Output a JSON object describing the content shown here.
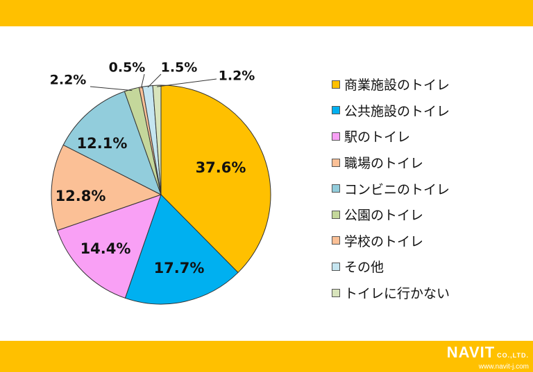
{
  "chart_data": {
    "type": "pie",
    "start_angle_deg": 0,
    "direction": "clockwise",
    "slices": [
      {
        "label": "商業施設のトイレ",
        "value": 37.6,
        "value_label": "37.6%",
        "color": "#FFC000"
      },
      {
        "label": "公共施設のトイレ",
        "value": 17.7,
        "value_label": "17.7%",
        "color": "#00B0F0"
      },
      {
        "label": "駅のトイレ",
        "value": 14.4,
        "value_label": "14.4%",
        "color": "#F9A0F5"
      },
      {
        "label": "職場のトイレ",
        "value": 12.8,
        "value_label": "12.8%",
        "color": "#FBC096"
      },
      {
        "label": "コンビニのトイレ",
        "value": 12.1,
        "value_label": "12.1%",
        "color": "#92CDDC"
      },
      {
        "label": "公園のトイレ",
        "value": 2.2,
        "value_label": "2.2%",
        "color": "#C4D79B"
      },
      {
        "label": "学校のトイレ",
        "value": 0.5,
        "value_label": "0.5%",
        "color": "#FBC096"
      },
      {
        "label": "その他",
        "value": 1.5,
        "value_label": "1.5%",
        "color": "#C5E5F0"
      },
      {
        "label": "トイレに行かない",
        "value": 1.2,
        "value_label": "1.2%",
        "color": "#D8E4BC"
      }
    ],
    "legend_position": "right"
  },
  "branding": {
    "logo": "NAVIT",
    "company_suffix": "CO.,LTD.",
    "url": "www.navit-j.com",
    "accent_color": "#FFC000"
  }
}
